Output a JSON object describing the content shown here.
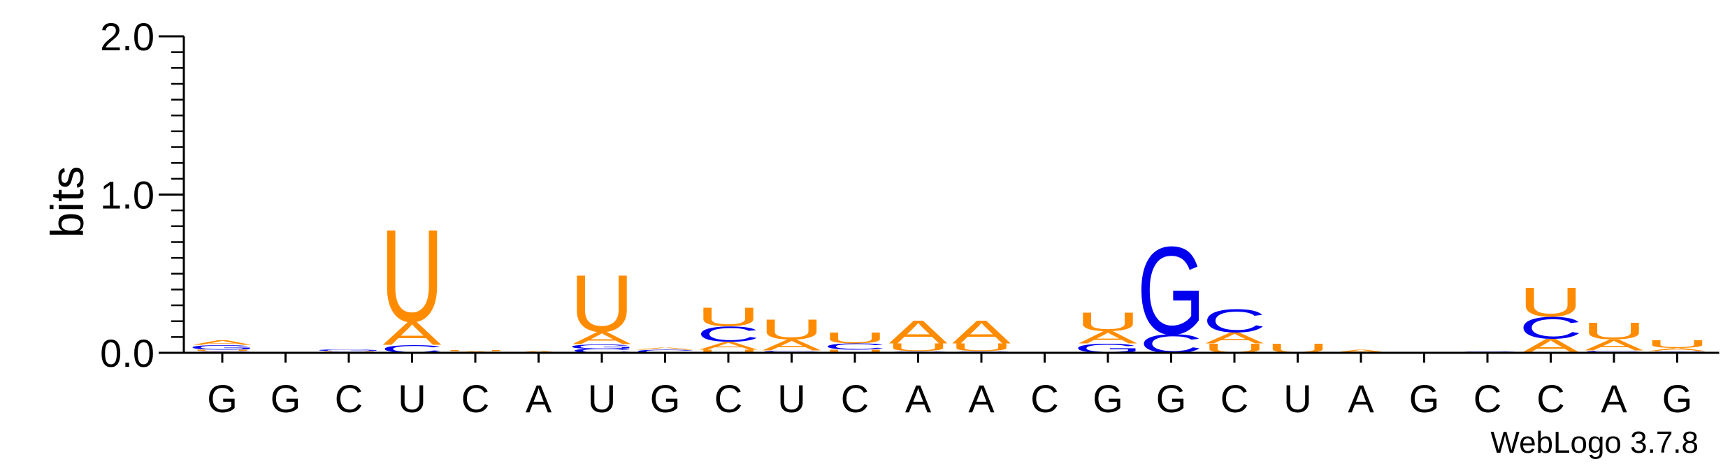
{
  "chart_data": {
    "type": "sequence-logo",
    "ylabel": "bits",
    "ylim": [
      0,
      2
    ],
    "yticks": [
      {
        "value": 0,
        "label": "0.0"
      },
      {
        "value": 1,
        "label": "1.0"
      },
      {
        "value": 2,
        "label": "2.0"
      }
    ],
    "colors": {
      "A": "#ff8c00",
      "U": "#ff8c00",
      "C": "#0000ee",
      "G": "#0000ee"
    },
    "positions": [
      {
        "label": "G",
        "stack": [
          {
            "b": "C",
            "v": 0.01
          },
          {
            "b": "U",
            "v": 0.01
          },
          {
            "b": "G",
            "v": 0.03
          },
          {
            "b": "A",
            "v": 0.03
          }
        ]
      },
      {
        "label": "G",
        "stack": []
      },
      {
        "label": "C",
        "stack": [
          {
            "b": "U",
            "v": 0.01
          },
          {
            "b": "G",
            "v": 0.012
          }
        ]
      },
      {
        "label": "U",
        "stack": [
          {
            "b": "C",
            "v": 0.05
          },
          {
            "b": "A",
            "v": 0.15
          },
          {
            "b": "U",
            "v": 0.6
          }
        ]
      },
      {
        "label": "C",
        "stack": [
          {
            "b": "A",
            "v": 0.008
          },
          {
            "b": "U",
            "v": 0.01
          }
        ]
      },
      {
        "label": "A",
        "stack": [
          {
            "b": "A",
            "v": 0.012
          }
        ]
      },
      {
        "label": "U",
        "stack": [
          {
            "b": "C",
            "v": 0.025
          },
          {
            "b": "G",
            "v": 0.03
          },
          {
            "b": "A",
            "v": 0.08
          },
          {
            "b": "U",
            "v": 0.37
          }
        ]
      },
      {
        "label": "G",
        "stack": [
          {
            "b": "C",
            "v": 0.02
          },
          {
            "b": "A",
            "v": 0.015
          }
        ]
      },
      {
        "label": "C",
        "stack": [
          {
            "b": "U",
            "v": 0.02
          },
          {
            "b": "A",
            "v": 0.05
          },
          {
            "b": "C",
            "v": 0.1
          },
          {
            "b": "U",
            "v": 0.12
          }
        ]
      },
      {
        "label": "U",
        "stack": [
          {
            "b": "C",
            "v": 0.015
          },
          {
            "b": "A",
            "v": 0.07
          },
          {
            "b": "U",
            "v": 0.13
          }
        ]
      },
      {
        "label": "C",
        "stack": [
          {
            "b": "U",
            "v": 0.02
          },
          {
            "b": "C",
            "v": 0.04
          },
          {
            "b": "U",
            "v": 0.07
          }
        ]
      },
      {
        "label": "A",
        "stack": [
          {
            "b": "C",
            "v": 0.01
          },
          {
            "b": "U",
            "v": 0.05
          },
          {
            "b": "A",
            "v": 0.15
          }
        ]
      },
      {
        "label": "A",
        "stack": [
          {
            "b": "C",
            "v": 0.01
          },
          {
            "b": "U",
            "v": 0.05
          },
          {
            "b": "A",
            "v": 0.15
          }
        ]
      },
      {
        "label": "C",
        "stack": []
      },
      {
        "label": "G",
        "stack": [
          {
            "b": "G",
            "v": 0.06
          },
          {
            "b": "A",
            "v": 0.08
          },
          {
            "b": "U",
            "v": 0.12
          }
        ]
      },
      {
        "label": "G",
        "stack": [
          {
            "b": "C",
            "v": 0.12
          },
          {
            "b": "G",
            "v": 0.57
          }
        ]
      },
      {
        "label": "C",
        "stack": [
          {
            "b": "U",
            "v": 0.06
          },
          {
            "b": "A",
            "v": 0.07
          },
          {
            "b": "C",
            "v": 0.15
          }
        ]
      },
      {
        "label": "U",
        "stack": [
          {
            "b": "U",
            "v": 0.06
          }
        ]
      },
      {
        "label": "A",
        "stack": [
          {
            "b": "A",
            "v": 0.02
          }
        ]
      },
      {
        "label": "G",
        "stack": []
      },
      {
        "label": "C",
        "stack": [
          {
            "b": "C",
            "v": 0.008
          }
        ]
      },
      {
        "label": "C",
        "stack": [
          {
            "b": "A",
            "v": 0.09
          },
          {
            "b": "C",
            "v": 0.14
          },
          {
            "b": "U",
            "v": 0.19
          }
        ]
      },
      {
        "label": "A",
        "stack": [
          {
            "b": "C",
            "v": 0.015
          },
          {
            "b": "A",
            "v": 0.07
          },
          {
            "b": "U",
            "v": 0.11
          }
        ]
      },
      {
        "label": "G",
        "stack": [
          {
            "b": "C",
            "v": 0.01
          },
          {
            "b": "A",
            "v": 0.02
          },
          {
            "b": "U",
            "v": 0.05
          }
        ]
      }
    ]
  },
  "credit": "WebLogo 3.7.8"
}
